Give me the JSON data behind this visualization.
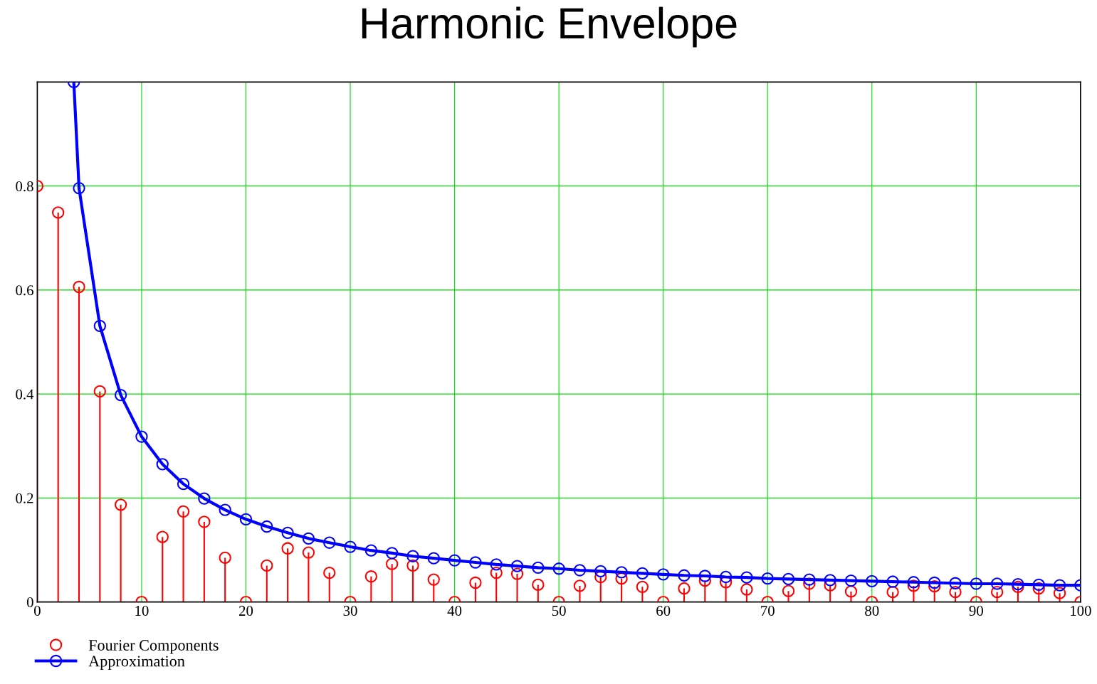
{
  "chart_data": {
    "type": "lollipop",
    "title": "Harmonic Envelope",
    "xlim": [
      0,
      100
    ],
    "ylim": [
      0,
      1.0
    ],
    "xticks": [
      0,
      10,
      20,
      30,
      40,
      50,
      60,
      70,
      80,
      90,
      100
    ],
    "yticks": [
      0,
      0.2,
      0.4,
      0.6,
      0.8
    ],
    "grid": true,
    "legend": "bottom left",
    "marker": "circle",
    "series": [
      {
        "name": "Fourier Components",
        "color": "#ff0000",
        "x": [
          0,
          2,
          4,
          6,
          8,
          10,
          12,
          14,
          16,
          18,
          20,
          22,
          24,
          26,
          28,
          30,
          32,
          34,
          36,
          38,
          40,
          42,
          44,
          46,
          48,
          50,
          52,
          54,
          56,
          58,
          60,
          62,
          64,
          66,
          68,
          70,
          72,
          74,
          76,
          78,
          80,
          82,
          84,
          86,
          88,
          90,
          92,
          94,
          96,
          98,
          100
        ],
        "values": [
          0.8,
          0.749,
          0.606,
          0.405,
          0.187,
          0,
          0.125,
          0.174,
          0.154,
          0.085,
          0,
          0.07,
          0.103,
          0.095,
          0.056,
          0,
          0.049,
          0.073,
          0.07,
          0.043,
          0,
          0.037,
          0.056,
          0.054,
          0.033,
          0,
          0.031,
          0.048,
          0.045,
          0.029,
          0,
          0.026,
          0.041,
          0.038,
          0.024,
          0,
          0.021,
          0.035,
          0.032,
          0.02,
          0,
          0.019,
          0.031,
          0.03,
          0.019,
          0,
          0.019,
          0.029,
          0.026,
          0.017,
          0
        ]
      },
      {
        "name": "Approximation",
        "type": "line",
        "color": "#0000ff",
        "line_style": "solid",
        "x": [
          3.5,
          4,
          6,
          8,
          10,
          12,
          14,
          16,
          18,
          20,
          22,
          24,
          26,
          28,
          30,
          32,
          34,
          36,
          38,
          40,
          42,
          44,
          46,
          48,
          50,
          52,
          54,
          56,
          58,
          60,
          62,
          64,
          66,
          68,
          70,
          72,
          74,
          76,
          78,
          80,
          82,
          84,
          86,
          88,
          90,
          92,
          94,
          96,
          98,
          100
        ],
        "values": [
          1.0,
          0.796,
          0.531,
          0.398,
          0.318,
          0.265,
          0.227,
          0.199,
          0.177,
          0.159,
          0.145,
          0.133,
          0.122,
          0.114,
          0.106,
          0.099,
          0.094,
          0.088,
          0.084,
          0.08,
          0.076,
          0.072,
          0.069,
          0.066,
          0.064,
          0.061,
          0.059,
          0.057,
          0.055,
          0.053,
          0.051,
          0.05,
          0.048,
          0.047,
          0.045,
          0.044,
          0.043,
          0.042,
          0.041,
          0.04,
          0.039,
          0.038,
          0.037,
          0.036,
          0.035,
          0.035,
          0.034,
          0.033,
          0.032,
          0.032
        ]
      }
    ]
  }
}
